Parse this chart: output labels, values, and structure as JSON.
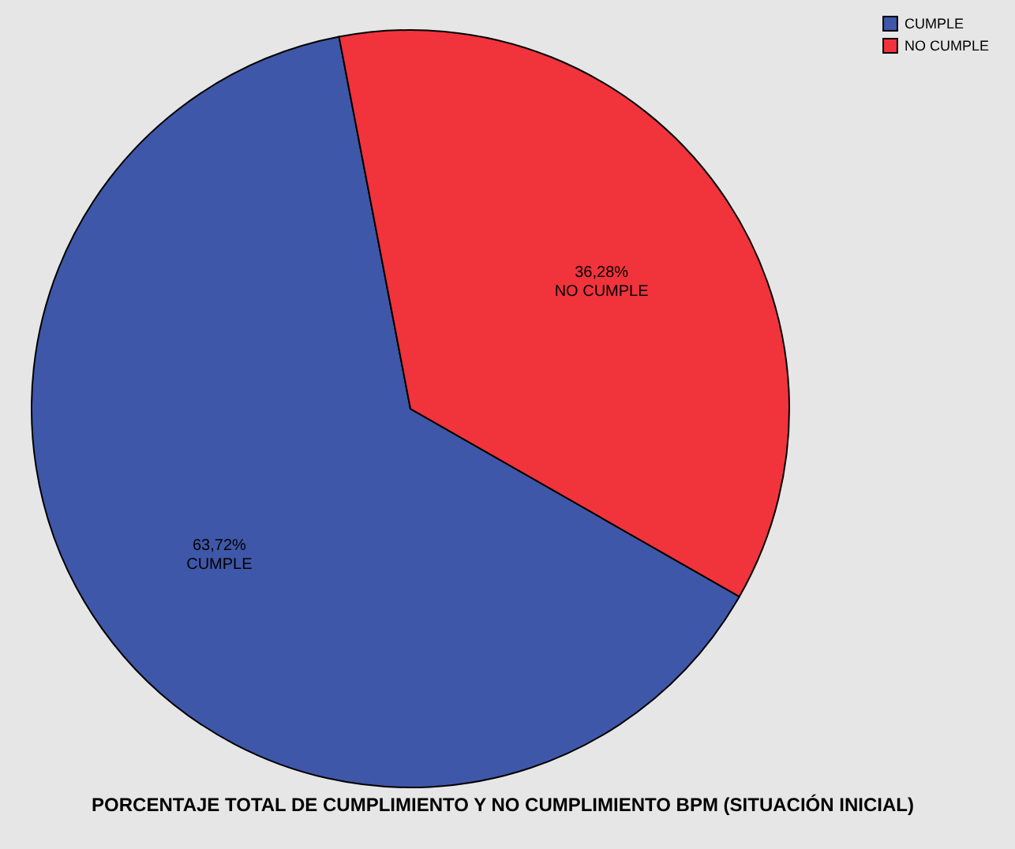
{
  "chart_data": {
    "type": "pie",
    "title": "PORCENTAJE TOTAL DE CUMPLIMIENTO Y NO CUMPLIMIENTO BPM (SITUACIÓN INICIAL)",
    "categories": [
      "CUMPLE",
      "NO CUMPLE"
    ],
    "values": [
      63.72,
      36.28
    ],
    "colors": [
      "#3f57a8",
      "#f1333c"
    ],
    "value_labels": [
      "63,72%",
      "36,28%"
    ],
    "legend": "top right"
  }
}
